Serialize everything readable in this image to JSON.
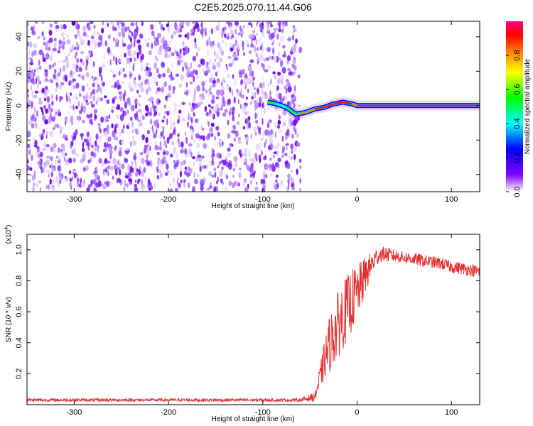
{
  "title": "C2E5.2025.070.11.44.G06",
  "colors": {
    "background": "#ffffff",
    "snr_line": "#e53030",
    "noise_tint": "#7f2bff"
  },
  "chart_data": [
    {
      "type": "heatmap",
      "xlabel": "Height of straight line (km)",
      "ylabel": "Frequency (Hz)",
      "xlim": [
        -350,
        130
      ],
      "ylim": [
        -50,
        49
      ],
      "xticks": [
        -300,
        -200,
        -100,
        0,
        100
      ],
      "yticks": [
        -40,
        -20,
        0,
        20,
        40
      ],
      "colorbar": {
        "label": "Normalized spectral amplitude",
        "range": [
          0,
          1
        ],
        "ticks": [
          "0.0",
          "0.2",
          "0.4",
          "0.6",
          "0.8"
        ],
        "colormap": [
          "#ffffff",
          "#8000ff",
          "#0000ff",
          "#00ffff",
          "#00ff00",
          "#ffff00",
          "#ff8000",
          "#ff0000",
          "#ff0080"
        ]
      },
      "noise_region_x": [
        -350,
        -60
      ],
      "signal_track": {
        "x": [
          -95,
          -85,
          -75,
          -65,
          -55,
          -45,
          -35,
          -25,
          -15,
          -5,
          0,
          5,
          130
        ],
        "y": [
          2,
          1,
          -1,
          -5,
          -4,
          -2,
          -1,
          1,
          2,
          1,
          0,
          0,
          0
        ],
        "amplitude": [
          0.45,
          0.4,
          0.5,
          0.7,
          0.8,
          0.85,
          0.9,
          0.9,
          0.85,
          0.8,
          0.95,
          0.95,
          0.95
        ]
      },
      "grid": false
    },
    {
      "type": "line",
      "xlabel": "Height of straight line (km)",
      "ylabel": "SNR (10 * v/v)",
      "scale_label": "(x10",
      "scale_exp": "4",
      "scale_close": ")",
      "xlim": [
        -350,
        130
      ],
      "ylim": [
        0,
        1.1
      ],
      "xticks": [
        -300,
        -200,
        -100,
        0,
        100
      ],
      "yticks": [
        "0.2",
        "0.4",
        "0.6",
        "0.8",
        "1.0"
      ],
      "series": [
        {
          "color": "#e53030",
          "x": [
            -350,
            -300,
            -250,
            -200,
            -150,
            -100,
            -60,
            -45,
            -40,
            -35,
            -30,
            -25,
            -20,
            -15,
            -10,
            -5,
            0,
            5,
            10,
            15,
            20,
            25,
            30,
            40,
            50,
            60,
            70,
            80,
            90,
            100,
            110,
            120,
            130
          ],
          "y": [
            0.03,
            0.03,
            0.03,
            0.03,
            0.03,
            0.03,
            0.03,
            0.05,
            0.15,
            0.28,
            0.38,
            0.45,
            0.52,
            0.58,
            0.62,
            0.68,
            0.72,
            0.78,
            0.85,
            0.9,
            0.95,
            0.97,
            0.97,
            0.96,
            0.95,
            0.94,
            0.93,
            0.92,
            0.91,
            0.89,
            0.88,
            0.87,
            0.86
          ],
          "noise_amp": [
            0.01,
            0.01,
            0.01,
            0.01,
            0.01,
            0.01,
            0.01,
            0.03,
            0.08,
            0.12,
            0.18,
            0.2,
            0.22,
            0.22,
            0.22,
            0.2,
            0.18,
            0.15,
            0.12,
            0.08,
            0.06,
            0.05,
            0.05,
            0.04,
            0.04,
            0.04,
            0.04,
            0.04,
            0.04,
            0.04,
            0.04,
            0.04,
            0.04
          ]
        }
      ],
      "grid": false
    }
  ]
}
